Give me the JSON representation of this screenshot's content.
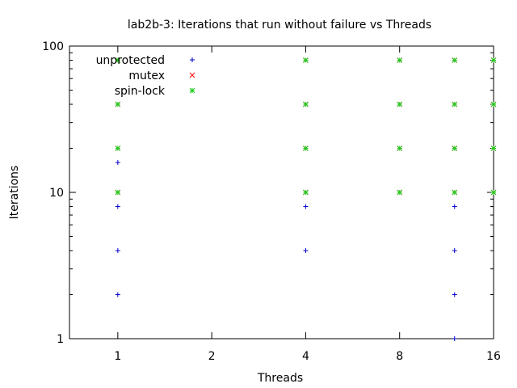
{
  "chart_data": {
    "type": "scatter",
    "title": "lab2b-3: Iterations that run without failure vs Threads",
    "xlabel": "Threads",
    "ylabel": "Iterations",
    "xscale": "log2",
    "yscale": "log10",
    "xlim": [
      0.7,
      16
    ],
    "ylim": [
      1,
      100
    ],
    "xticks": [
      {
        "v": 1,
        "label": "1"
      },
      {
        "v": 2,
        "label": "2"
      },
      {
        "v": 4,
        "label": "4"
      },
      {
        "v": 8,
        "label": "8"
      },
      {
        "v": 16,
        "label": "16"
      }
    ],
    "yticks": [
      {
        "v": 1,
        "label": "1"
      },
      {
        "v": 10,
        "label": "10"
      },
      {
        "v": 100,
        "label": "100"
      }
    ],
    "grid": false,
    "legend_position": "top-left",
    "series": [
      {
        "name": "unprotected",
        "color": "#0000cc",
        "marker": "plus",
        "points": [
          [
            1,
            2
          ],
          [
            1,
            4
          ],
          [
            1,
            8
          ],
          [
            1,
            16
          ],
          [
            4,
            4
          ],
          [
            4,
            8
          ],
          [
            12,
            1
          ],
          [
            12,
            2
          ],
          [
            12,
            4
          ],
          [
            12,
            8
          ]
        ]
      },
      {
        "name": "mutex",
        "color": "#ff0000",
        "marker": "cross",
        "points": [
          [
            1,
            10
          ],
          [
            1,
            20
          ],
          [
            1,
            40
          ],
          [
            1,
            80
          ],
          [
            4,
            10
          ],
          [
            4,
            20
          ],
          [
            4,
            40
          ],
          [
            4,
            80
          ],
          [
            8,
            10
          ],
          [
            8,
            20
          ],
          [
            8,
            40
          ],
          [
            8,
            80
          ],
          [
            12,
            10
          ],
          [
            12,
            20
          ],
          [
            12,
            40
          ],
          [
            12,
            80
          ],
          [
            16,
            10
          ],
          [
            16,
            20
          ],
          [
            16,
            40
          ],
          [
            16,
            80
          ]
        ]
      },
      {
        "name": "spin-lock",
        "color": "#22cc22",
        "marker": "star",
        "points": [
          [
            1,
            10
          ],
          [
            1,
            20
          ],
          [
            1,
            40
          ],
          [
            1,
            80
          ],
          [
            4,
            10
          ],
          [
            4,
            20
          ],
          [
            4,
            40
          ],
          [
            4,
            80
          ],
          [
            8,
            10
          ],
          [
            8,
            20
          ],
          [
            8,
            40
          ],
          [
            8,
            80
          ],
          [
            12,
            10
          ],
          [
            12,
            20
          ],
          [
            12,
            40
          ],
          [
            12,
            80
          ],
          [
            16,
            10
          ],
          [
            16,
            20
          ],
          [
            16,
            40
          ],
          [
            16,
            80
          ]
        ]
      }
    ]
  }
}
